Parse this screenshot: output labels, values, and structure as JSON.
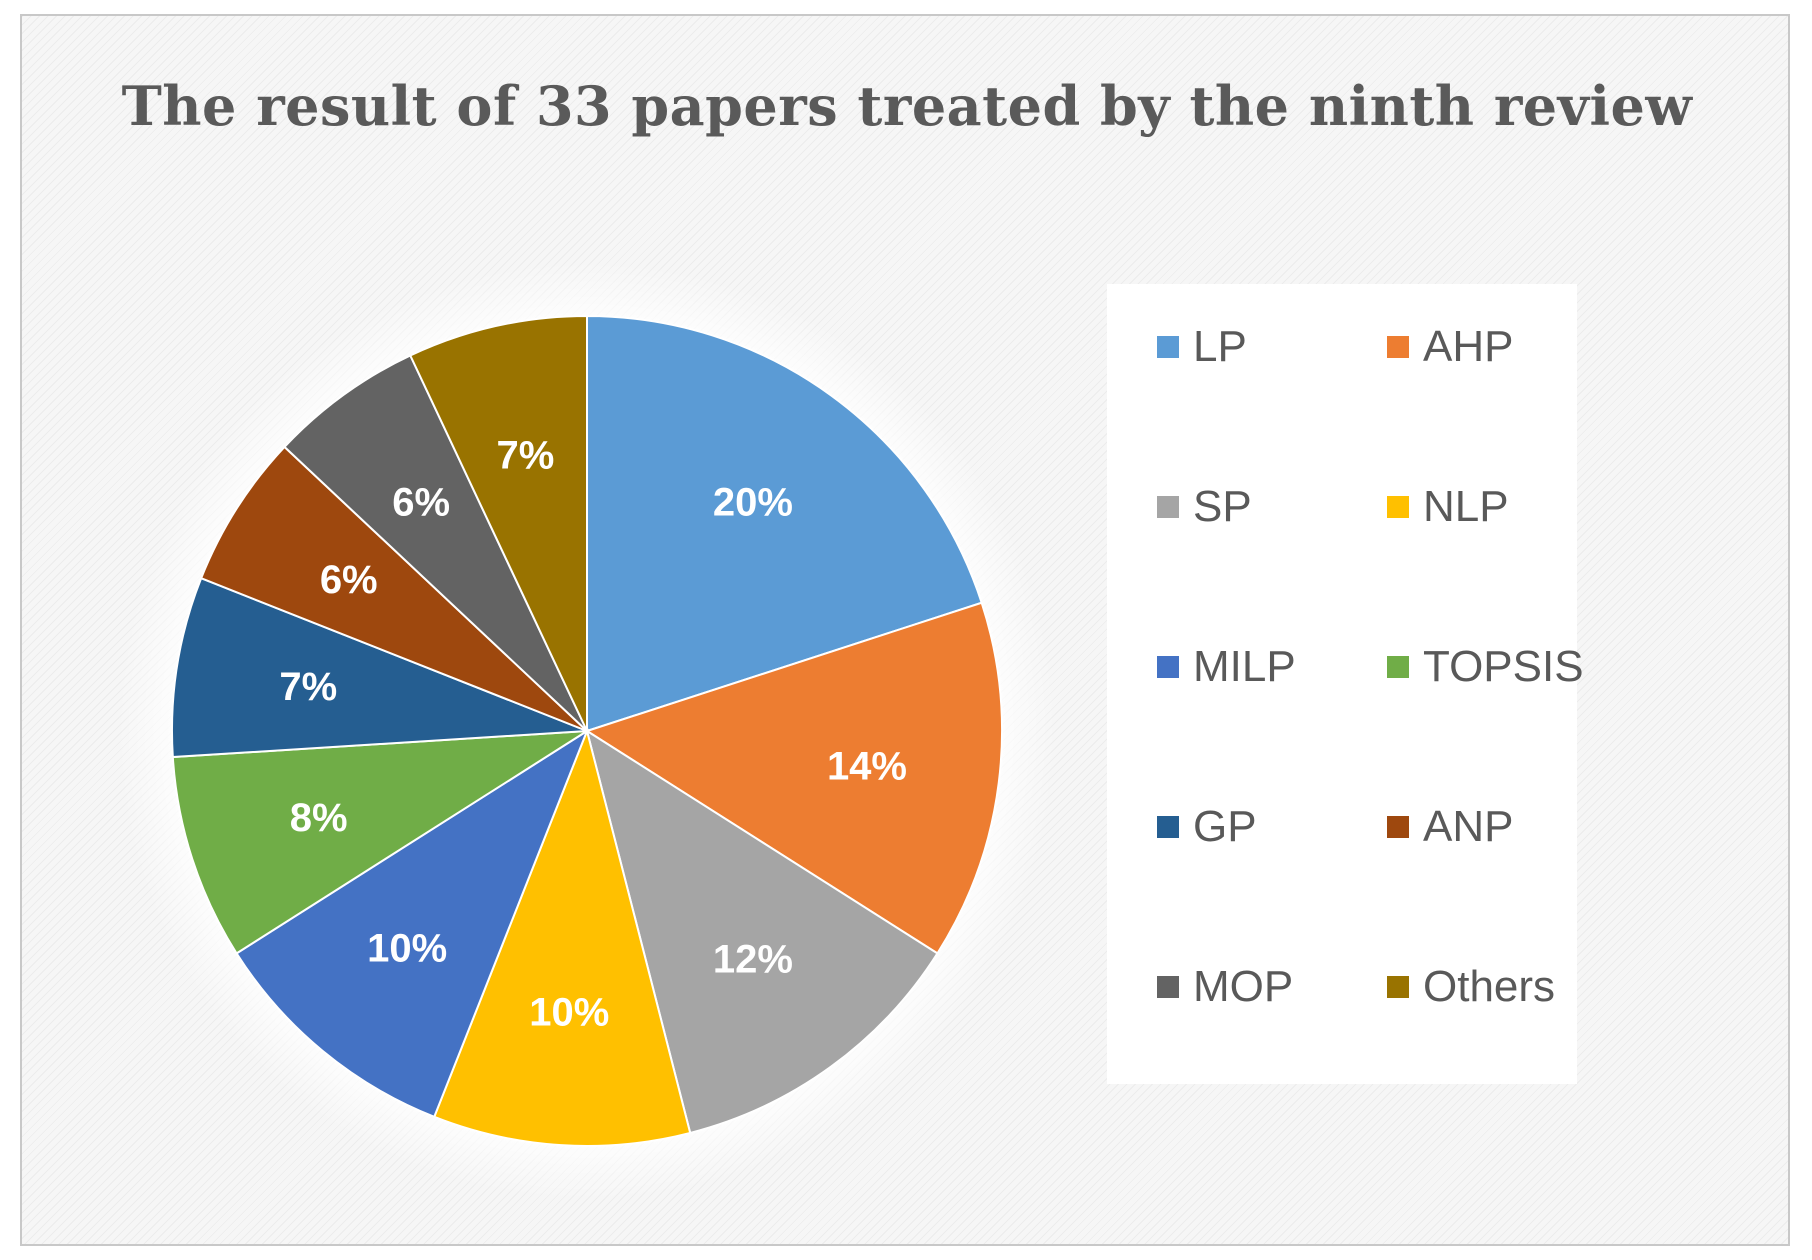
{
  "chart_data": {
    "type": "pie",
    "title": "The result of 33 papers treated by the ninth review",
    "categories": [
      "LP",
      "AHP",
      "SP",
      "NLP",
      "MILP",
      "TOPSIS",
      "GP",
      "ANP",
      "MOP",
      "Others"
    ],
    "values": [
      20,
      14,
      12,
      10,
      10,
      8,
      7,
      6,
      6,
      7
    ],
    "value_labels": [
      "20%",
      "14%",
      "12%",
      "10%",
      "10%",
      "8%",
      "7%",
      "6%",
      "6%",
      "7%"
    ],
    "colors": [
      "#5b9bd5",
      "#ed7d31",
      "#a5a5a5",
      "#ffc000",
      "#4472c4",
      "#70ad47",
      "#255e91",
      "#9e480e",
      "#636363",
      "#997300"
    ],
    "legend_position": "right"
  }
}
